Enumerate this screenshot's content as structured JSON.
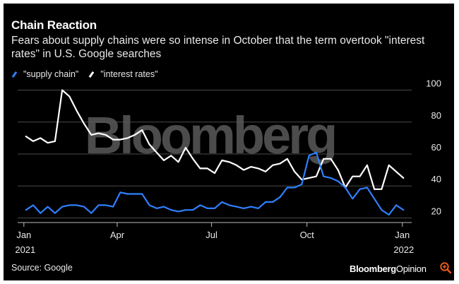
{
  "header": {
    "title": "Chain Reaction",
    "subtitle": "Fears about supply chains were so intense in October that the term overtook \"interest rates\" in U.S. Google searches"
  },
  "footer": {
    "source": "Source: Google",
    "brand_bold": "Bloomberg",
    "brand_rest": "Opinion"
  },
  "watermark": "Bloomberg",
  "icons": {
    "zoom": "zoom-in-icon"
  },
  "colors": {
    "background": "#000000",
    "supply_chain": "#2f80ff",
    "interest_rates": "#ffffff",
    "grid": "#4a4a4a",
    "watermark": "#5a5a5a"
  },
  "chart_data": {
    "type": "line",
    "x_start": "2021-01-03",
    "x_step_days": 7,
    "ylim": [
      18,
      102
    ],
    "yticks": [
      20,
      40,
      60,
      80,
      100
    ],
    "xticks": [
      {
        "date": "2021-01-01",
        "label": "Jan",
        "sublabel": "2021"
      },
      {
        "date": "2021-04-01",
        "label": "Apr",
        "sublabel": ""
      },
      {
        "date": "2021-07-01",
        "label": "Jul",
        "sublabel": ""
      },
      {
        "date": "2021-10-01",
        "label": "Oct",
        "sublabel": ""
      },
      {
        "date": "2022-01-01",
        "label": "Jan",
        "sublabel": "2022"
      }
    ],
    "grid": "horizontal",
    "legend_position": "top-left",
    "series": [
      {
        "name": "\"supply chain\"",
        "color": "#2f80ff",
        "values": [
          25,
          28,
          23,
          27,
          23,
          27,
          28,
          28,
          27,
          23,
          28,
          28,
          27,
          36,
          35,
          35,
          35,
          28,
          26,
          27,
          25,
          24,
          25,
          25,
          28,
          26,
          26,
          30,
          28,
          27,
          26,
          27,
          26,
          30,
          30,
          33,
          39,
          39,
          41,
          59,
          61,
          46,
          45,
          43,
          39,
          32,
          38,
          39,
          32,
          25,
          22,
          28,
          25
        ]
      },
      {
        "name": "\"interest rates\"",
        "color": "#ffffff",
        "values": [
          71,
          68,
          70,
          67,
          68,
          100,
          96,
          87,
          79,
          72,
          73,
          72,
          69,
          69,
          70,
          72,
          75,
          66,
          61,
          56,
          59,
          55,
          64,
          57,
          51,
          51,
          48,
          56,
          55,
          53,
          50,
          52,
          51,
          49,
          53,
          54,
          57,
          49,
          44,
          45,
          46,
          57,
          57,
          50,
          39,
          46,
          46,
          53,
          38,
          38,
          53,
          49,
          45
        ]
      }
    ]
  }
}
